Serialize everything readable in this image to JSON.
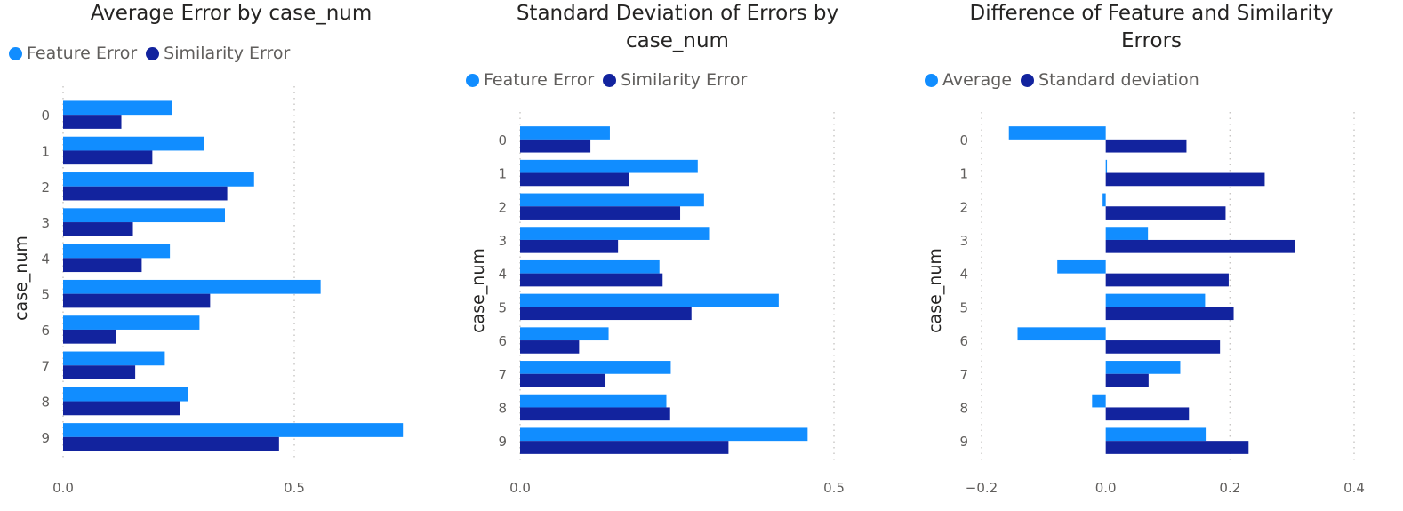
{
  "colors": {
    "light": "#118DFF",
    "dark": "#12239E",
    "grid": "#c8c6c4"
  },
  "chart_data": [
    {
      "type": "bar",
      "orientation": "horizontal",
      "title": "Average Error by case_num",
      "ylabel": "case_num",
      "xlabel": "",
      "categories": [
        "0",
        "1",
        "2",
        "3",
        "4",
        "5",
        "6",
        "7",
        "8",
        "9"
      ],
      "xlim": [
        0,
        0.75
      ],
      "xticks": [
        0.0,
        0.5
      ],
      "xtick_labels": [
        "0.0",
        "0.5"
      ],
      "series": [
        {
          "name": "Feature Error",
          "color": "#118DFF",
          "values": [
            0.236,
            0.305,
            0.413,
            0.35,
            0.231,
            0.557,
            0.295,
            0.22,
            0.271,
            0.735
          ]
        },
        {
          "name": "Similarity Error",
          "color": "#12239E",
          "values": [
            0.126,
            0.193,
            0.355,
            0.151,
            0.17,
            0.318,
            0.114,
            0.156,
            0.253,
            0.467
          ]
        }
      ],
      "legend": "top-left"
    },
    {
      "type": "bar",
      "orientation": "horizontal",
      "title": "Standard Deviation of Errors by\ncase_num",
      "ylabel": "case_num",
      "xlabel": "",
      "categories": [
        "0",
        "1",
        "2",
        "3",
        "4",
        "5",
        "6",
        "7",
        "8",
        "9"
      ],
      "xlim": [
        0,
        0.5
      ],
      "xticks": [
        0.0,
        0.5
      ],
      "xtick_labels": [
        "0.0",
        "0.5"
      ],
      "series": [
        {
          "name": "Feature Error",
          "color": "#118DFF",
          "values": [
            0.143,
            0.283,
            0.293,
            0.301,
            0.222,
            0.412,
            0.141,
            0.24,
            0.233,
            0.458
          ]
        },
        {
          "name": "Similarity Error",
          "color": "#12239E",
          "values": [
            0.112,
            0.174,
            0.255,
            0.156,
            0.227,
            0.273,
            0.094,
            0.136,
            0.239,
            0.332
          ]
        }
      ],
      "legend": "top-left"
    },
    {
      "type": "bar",
      "orientation": "horizontal",
      "title": "Difference of Feature and Similarity\nErrors",
      "ylabel": "case_num",
      "xlabel": "",
      "categories": [
        "0",
        "1",
        "2",
        "3",
        "4",
        "5",
        "6",
        "7",
        "8",
        "9"
      ],
      "xlim": [
        -0.2,
        0.4
      ],
      "xticks": [
        -0.2,
        0.0,
        0.2,
        0.4
      ],
      "xtick_labels": [
        "−0.2",
        "0.0",
        "0.2",
        "0.4"
      ],
      "series": [
        {
          "name": "Average",
          "color": "#118DFF",
          "values": [
            -0.156,
            0.002,
            -0.005,
            0.068,
            -0.078,
            0.16,
            -0.142,
            0.12,
            -0.022,
            0.161
          ]
        },
        {
          "name": "Standard deviation",
          "color": "#12239E",
          "values": [
            0.13,
            0.256,
            0.193,
            0.305,
            0.198,
            0.206,
            0.184,
            0.069,
            0.134,
            0.23
          ]
        }
      ],
      "legend": "top-left"
    }
  ]
}
